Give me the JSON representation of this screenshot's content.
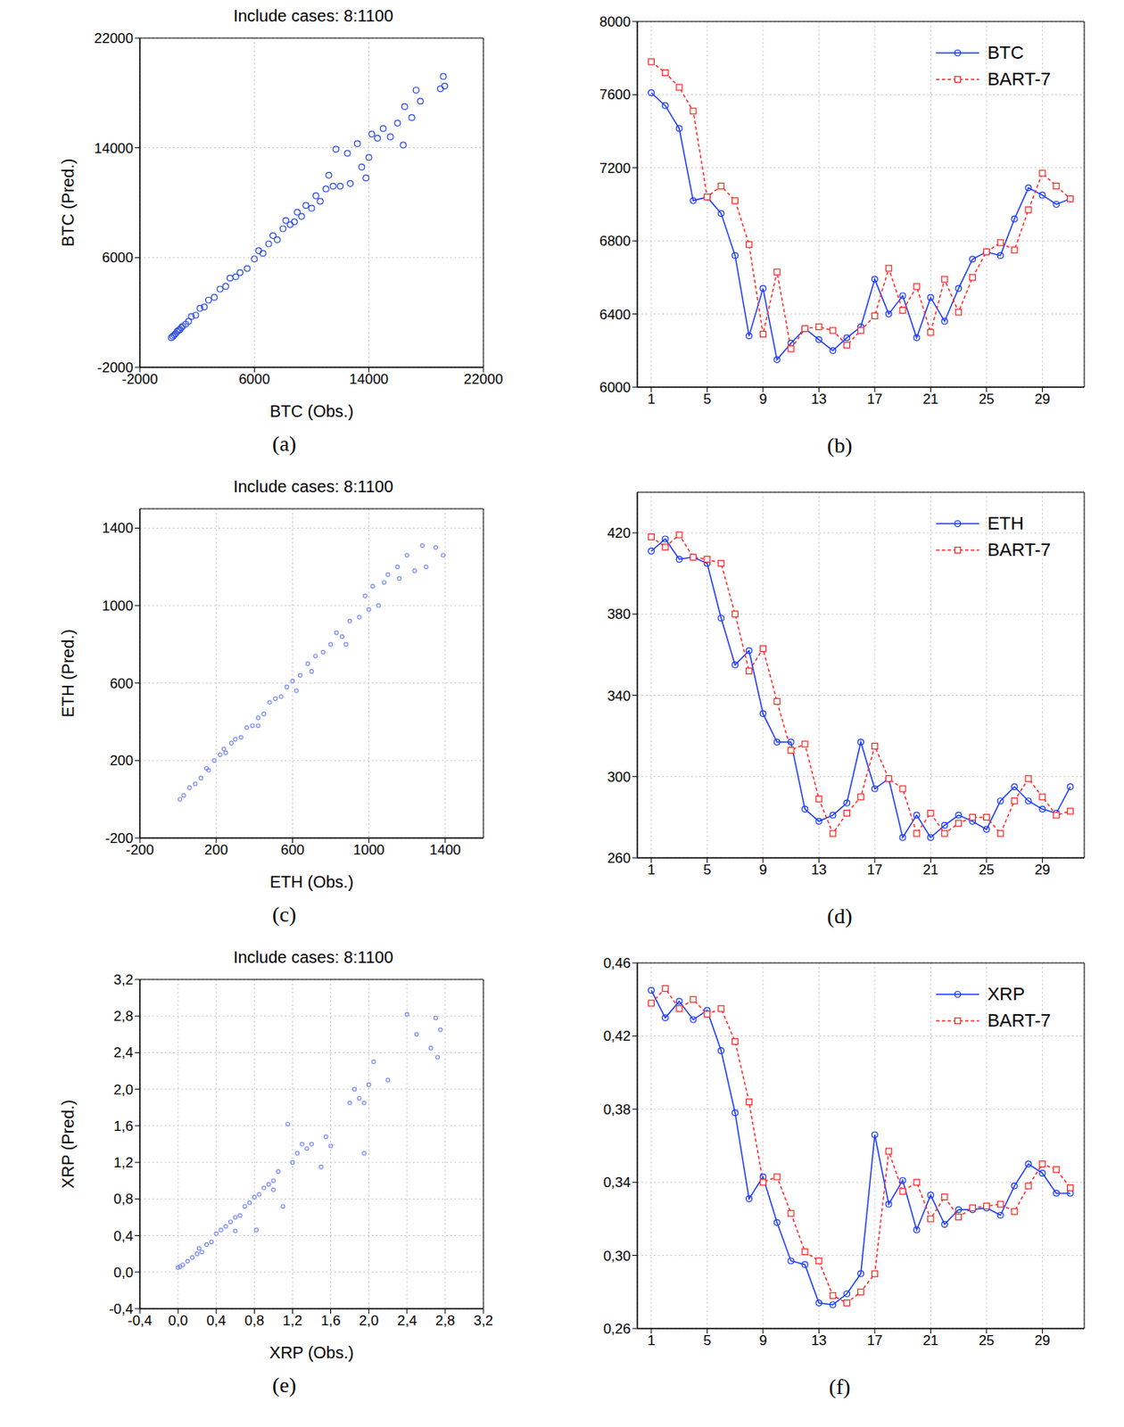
{
  "chart_data": [
    {
      "type": "scatter",
      "title": "Include cases: 8:1100",
      "caption": "(a)",
      "x_label": "BTC (Obs.)",
      "y_label": "BTC (Pred.)",
      "xlim": [
        -2000,
        22000
      ],
      "ylim": [
        -2000,
        22000
      ],
      "xticks": [
        -2000,
        6000,
        14000,
        22000
      ],
      "yticks": [
        -2000,
        6000,
        14000,
        22000
      ],
      "grid": true,
      "color": "#2f4fe0",
      "marker": "circle",
      "x": [
        200,
        300,
        400,
        500,
        600,
        700,
        800,
        900,
        1000,
        1200,
        1400,
        1600,
        1900,
        2200,
        2500,
        2800,
        3200,
        3600,
        4000,
        4300,
        4700,
        5000,
        5500,
        6000,
        6300,
        6600,
        7000,
        7300,
        7600,
        8000,
        8200,
        8500,
        8800,
        9000,
        9300,
        9600,
        10000,
        10300,
        10600,
        11000,
        11200,
        11500,
        11700,
        12000,
        12500,
        13200,
        13500,
        13800,
        14200,
        14600,
        15000,
        15500,
        16000,
        16500,
        16400,
        17000,
        17300,
        17600,
        19000,
        19300,
        19200,
        14000,
        12700
      ],
      "y": [
        150,
        250,
        350,
        450,
        600,
        700,
        750,
        900,
        1000,
        1150,
        1350,
        1700,
        1800,
        2300,
        2400,
        2900,
        3100,
        3700,
        3900,
        4500,
        4600,
        4900,
        5200,
        5900,
        6500,
        6300,
        7000,
        7600,
        7300,
        8100,
        8700,
        8400,
        8600,
        9300,
        9000,
        9800,
        9600,
        10500,
        10100,
        11000,
        12000,
        11200,
        13900,
        11200,
        13600,
        14300,
        12600,
        11800,
        15000,
        14700,
        15400,
        14800,
        15800,
        17000,
        14200,
        16200,
        18200,
        17400,
        18300,
        18500,
        19200,
        13300,
        11400
      ]
    },
    {
      "type": "line",
      "caption": "(b)",
      "x": [
        1,
        2,
        3,
        4,
        5,
        6,
        7,
        8,
        9,
        10,
        11,
        12,
        13,
        14,
        15,
        16,
        17,
        18,
        19,
        20,
        21,
        22,
        23,
        24,
        25,
        26,
        27,
        28,
        29,
        30,
        31
      ],
      "xlim": [
        0,
        32
      ],
      "xticks": [
        1,
        5,
        9,
        13,
        17,
        21,
        25,
        29
      ],
      "ylim": [
        6000,
        8000
      ],
      "yticks": [
        6000,
        6400,
        6800,
        7200,
        7600,
        8000
      ],
      "grid": true,
      "legend": "upper right",
      "series": [
        {
          "name": "BTC",
          "color": "#1e3cff",
          "marker": "circle",
          "line_style": "solid",
          "values": [
            7610,
            7540,
            7415,
            7020,
            7040,
            6950,
            6720,
            6280,
            6540,
            6150,
            6240,
            6320,
            6260,
            6200,
            6270,
            6330,
            6590,
            6400,
            6500,
            6270,
            6490,
            6360,
            6540,
            6700,
            6740,
            6720,
            6920,
            7090,
            7050,
            7000,
            7030
          ]
        },
        {
          "name": "BART-7",
          "color": "#ff2a2a",
          "marker": "square",
          "line_style": "dashed",
          "values": [
            7780,
            7720,
            7640,
            7510,
            7040,
            7100,
            7020,
            6780,
            6290,
            6630,
            6210,
            6320,
            6330,
            6310,
            6230,
            6310,
            6390,
            6650,
            6420,
            6550,
            6300,
            6590,
            6410,
            6600,
            6740,
            6790,
            6750,
            6970,
            7170,
            7100,
            7030
          ]
        }
      ]
    },
    {
      "type": "scatter",
      "title": "Include cases: 8:1100",
      "caption": "(c)",
      "x_label": "ETH (Obs.)",
      "y_label": "ETH (Pred.)",
      "xlim": [
        -200,
        1600
      ],
      "ylim": [
        -200,
        1500
      ],
      "xticks": [
        -200,
        200,
        600,
        1000,
        1400
      ],
      "yticks": [
        -200,
        200,
        600,
        1000,
        1400
      ],
      "grid": true,
      "color": "#7f8ff0",
      "marker": "circle",
      "x": [
        10,
        30,
        60,
        90,
        120,
        160,
        190,
        220,
        250,
        280,
        300,
        330,
        360,
        390,
        420,
        450,
        480,
        510,
        540,
        570,
        600,
        640,
        680,
        700,
        720,
        760,
        800,
        830,
        860,
        900,
        950,
        1000,
        1020,
        1050,
        1080,
        1100,
        1150,
        1160,
        1200,
        1240,
        1280,
        1300,
        1350,
        1390,
        980,
        880,
        620,
        420,
        240,
        150
      ],
      "y": [
        0,
        20,
        60,
        80,
        110,
        150,
        200,
        230,
        240,
        290,
        310,
        320,
        370,
        380,
        420,
        440,
        500,
        520,
        530,
        580,
        610,
        640,
        700,
        660,
        740,
        760,
        800,
        860,
        840,
        920,
        940,
        980,
        1100,
        1000,
        1120,
        1160,
        1200,
        1140,
        1260,
        1180,
        1310,
        1200,
        1300,
        1260,
        1050,
        800,
        560,
        380,
        260,
        160
      ]
    },
    {
      "type": "line",
      "caption": "(d)",
      "x": [
        1,
        2,
        3,
        4,
        5,
        6,
        7,
        8,
        9,
        10,
        11,
        12,
        13,
        14,
        15,
        16,
        17,
        18,
        19,
        20,
        21,
        22,
        23,
        24,
        25,
        26,
        27,
        28,
        29,
        30,
        31
      ],
      "xlim": [
        0,
        32
      ],
      "xticks": [
        1,
        5,
        9,
        13,
        17,
        21,
        25,
        29
      ],
      "ylim": [
        260,
        440
      ],
      "yticks": [
        260,
        300,
        340,
        380,
        420
      ],
      "grid": true,
      "legend": "upper right",
      "series": [
        {
          "name": "ETH",
          "color": "#1e3cff",
          "marker": "circle",
          "line_style": "solid",
          "values": [
            411,
            417,
            407,
            408,
            405,
            378,
            355,
            362,
            331,
            317,
            317,
            284,
            278,
            281,
            287,
            317,
            294,
            299,
            270,
            281,
            270,
            276,
            281,
            278,
            274,
            288,
            295,
            288,
            284,
            282,
            295
          ]
        },
        {
          "name": "BART-7",
          "color": "#ff2a2a",
          "marker": "square",
          "line_style": "dashed",
          "values": [
            418,
            413,
            419,
            408,
            407,
            405,
            380,
            352,
            363,
            337,
            313,
            316,
            289,
            272,
            282,
            290,
            315,
            299,
            294,
            272,
            282,
            272,
            277,
            280,
            280,
            272,
            288,
            299,
            290,
            281,
            283
          ]
        }
      ]
    },
    {
      "type": "scatter",
      "title": "Include cases: 8:1100",
      "caption": "(e)",
      "x_label": "XRP (Obs.)",
      "y_label": "XRP (Pred.)",
      "xlim": [
        -0.4,
        3.2
      ],
      "ylim": [
        -0.4,
        3.2
      ],
      "xticks": [
        {
          "value": -0.4,
          "label": "-0,4"
        },
        {
          "value": 0,
          "label": "0,0"
        },
        {
          "value": 0.4,
          "label": "0,4"
        },
        {
          "value": 0.8,
          "label": "0,8"
        },
        {
          "value": 1.2,
          "label": "1,2"
        },
        {
          "value": 1.6,
          "label": "1,6"
        },
        {
          "value": 2,
          "label": "2,0"
        },
        {
          "value": 2.4,
          "label": "2,4"
        },
        {
          "value": 2.8,
          "label": "2,8"
        },
        {
          "value": 3.2,
          "label": "3,2"
        }
      ],
      "yticks": [
        {
          "value": -0.4,
          "label": "-0,4"
        },
        {
          "value": 0,
          "label": "0,0"
        },
        {
          "value": 0.4,
          "label": "0,4"
        },
        {
          "value": 0.8,
          "label": "0,8"
        },
        {
          "value": 1.2,
          "label": "1,2"
        },
        {
          "value": 1.6,
          "label": "1,6"
        },
        {
          "value": 2,
          "label": "2,0"
        },
        {
          "value": 2.4,
          "label": "2,4"
        },
        {
          "value": 2.8,
          "label": "2,8"
        },
        {
          "value": 3.2,
          "label": "3,2"
        }
      ],
      "grid": true,
      "color": "#7f8ff0",
      "marker": "circle",
      "x": [
        0.0,
        0.02,
        0.05,
        0.1,
        0.15,
        0.2,
        0.22,
        0.25,
        0.3,
        0.35,
        0.4,
        0.45,
        0.5,
        0.55,
        0.6,
        0.65,
        0.7,
        0.75,
        0.8,
        0.82,
        0.85,
        0.9,
        0.95,
        1.0,
        1.05,
        1.1,
        1.15,
        1.2,
        1.25,
        1.3,
        1.35,
        1.4,
        1.5,
        1.55,
        1.6,
        1.8,
        1.85,
        1.9,
        1.95,
        1.95,
        2.0,
        2.05,
        2.2,
        2.4,
        2.5,
        2.65,
        2.7,
        2.72,
        2.75,
        0.6,
        1.0
      ],
      "y": [
        0.05,
        0.06,
        0.08,
        0.12,
        0.16,
        0.2,
        0.26,
        0.22,
        0.3,
        0.33,
        0.42,
        0.46,
        0.5,
        0.55,
        0.6,
        0.62,
        0.72,
        0.76,
        0.82,
        0.46,
        0.85,
        0.92,
        0.96,
        1.0,
        1.1,
        0.72,
        1.62,
        1.2,
        1.3,
        1.4,
        1.35,
        1.4,
        1.15,
        1.48,
        1.38,
        1.85,
        2.0,
        1.9,
        1.3,
        1.85,
        2.05,
        2.3,
        2.1,
        2.82,
        2.6,
        2.45,
        2.78,
        2.35,
        2.65,
        0.45,
        0.9
      ]
    },
    {
      "type": "line",
      "caption": "(f)",
      "x": [
        1,
        2,
        3,
        4,
        5,
        6,
        7,
        8,
        9,
        10,
        11,
        12,
        13,
        14,
        15,
        16,
        17,
        18,
        19,
        20,
        21,
        22,
        23,
        24,
        25,
        26,
        27,
        28,
        29,
        30,
        31
      ],
      "xlim": [
        0,
        32
      ],
      "xticks": [
        1,
        5,
        9,
        13,
        17,
        21,
        25,
        29
      ],
      "ylim": [
        0.26,
        0.46
      ],
      "yticks": [
        {
          "value": 0.26,
          "label": "0,26"
        },
        {
          "value": 0.3,
          "label": "0,30"
        },
        {
          "value": 0.34,
          "label": "0,34"
        },
        {
          "value": 0.38,
          "label": "0,38"
        },
        {
          "value": 0.42,
          "label": "0,42"
        },
        {
          "value": 0.46,
          "label": "0,46"
        }
      ],
      "grid": true,
      "legend": "upper right",
      "series": [
        {
          "name": "XRP",
          "color": "#1e3cff",
          "marker": "circle",
          "line_style": "solid",
          "values": [
            0.445,
            0.43,
            0.439,
            0.429,
            0.434,
            0.412,
            0.378,
            0.331,
            0.343,
            0.318,
            0.297,
            0.295,
            0.274,
            0.273,
            0.279,
            0.29,
            0.366,
            0.328,
            0.341,
            0.314,
            0.333,
            0.317,
            0.325,
            0.325,
            0.326,
            0.322,
            0.338,
            0.35,
            0.345,
            0.334,
            0.334
          ]
        },
        {
          "name": "BART-7",
          "color": "#ff2a2a",
          "marker": "square",
          "line_style": "dashed",
          "values": [
            0.438,
            0.446,
            0.435,
            0.44,
            0.432,
            0.435,
            0.417,
            0.384,
            0.34,
            0.343,
            0.323,
            0.302,
            0.297,
            0.278,
            0.274,
            0.28,
            0.29,
            0.357,
            0.335,
            0.34,
            0.32,
            0.332,
            0.321,
            0.326,
            0.327,
            0.328,
            0.324,
            0.338,
            0.35,
            0.347,
            0.337
          ]
        }
      ]
    }
  ]
}
